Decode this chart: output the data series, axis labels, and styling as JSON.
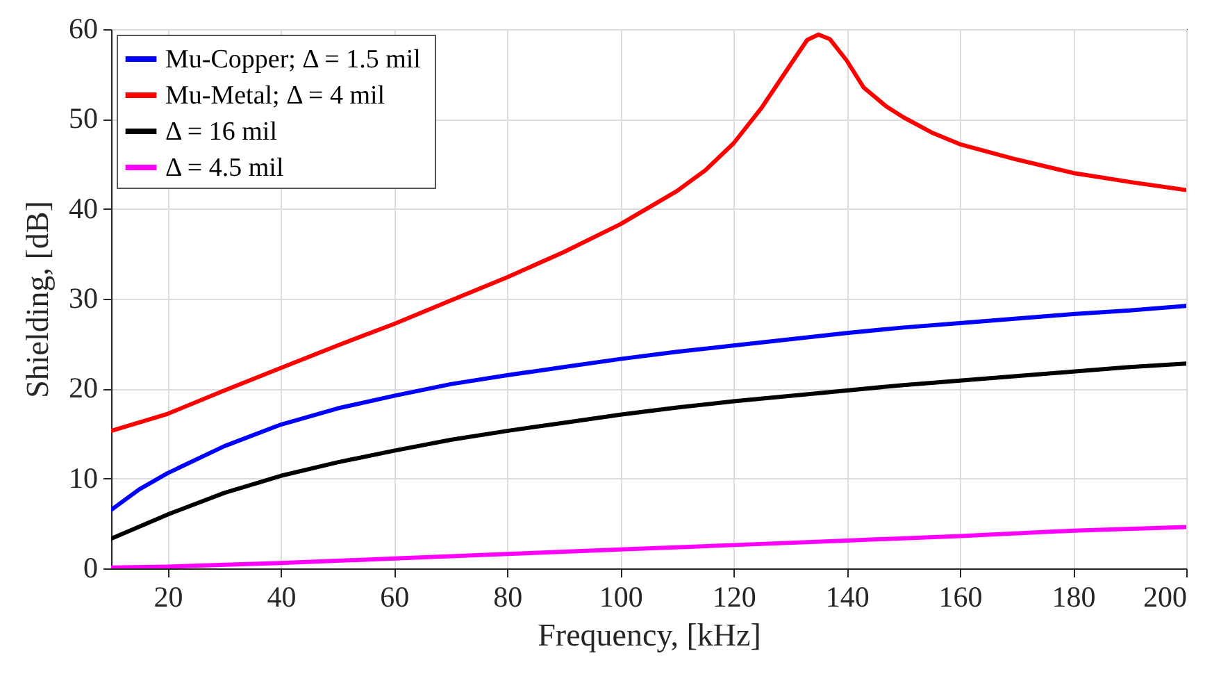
{
  "chart_data": {
    "type": "line",
    "xlabel": "Frequency, [kHz]",
    "ylabel": "Shielding, [dB]",
    "xlim": [
      10,
      200
    ],
    "ylim": [
      0,
      60
    ],
    "xticks": [
      20,
      40,
      60,
      80,
      100,
      120,
      140,
      160,
      180,
      200
    ],
    "yticks": [
      0,
      10,
      20,
      30,
      40,
      50,
      60
    ],
    "grid": true,
    "legend": "top left",
    "line_style": "solid",
    "marker": "none",
    "series": [
      {
        "name": "Mu-Copper; Δ =  1.5 mil",
        "color": "#0000ff",
        "x": [
          10,
          15,
          20,
          30,
          40,
          50,
          60,
          70,
          80,
          90,
          100,
          110,
          120,
          130,
          140,
          150,
          160,
          170,
          180,
          190,
          200
        ],
        "values": [
          6.5,
          8.8,
          10.6,
          13.6,
          16,
          17.8,
          19.2,
          20.5,
          21.5,
          22.4,
          23.3,
          24.1,
          24.8,
          25.5,
          26.2,
          26.8,
          27.3,
          27.8,
          28.3,
          28.7,
          29.2
        ]
      },
      {
        "name": "Mu-Metal; Δ =  4 mil",
        "color": "#ff0000",
        "x": [
          10,
          20,
          30,
          40,
          50,
          60,
          70,
          80,
          90,
          100,
          110,
          115,
          120,
          125,
          130,
          133,
          135,
          137,
          140,
          143,
          147,
          150,
          155,
          160,
          170,
          180,
          190,
          200
        ],
        "values": [
          15.3,
          17.2,
          19.8,
          22.3,
          24.8,
          27.2,
          29.8,
          32.4,
          35.2,
          38.3,
          42,
          44.3,
          47.3,
          51.3,
          56,
          58.8,
          59.4,
          58.9,
          56.5,
          53.5,
          51.4,
          50.2,
          48.5,
          47.2,
          45.5,
          44,
          43,
          42.1
        ]
      },
      {
        "name": "Δ =  16 mil",
        "color": "#000000",
        "x": [
          10,
          20,
          30,
          40,
          50,
          60,
          70,
          80,
          90,
          100,
          110,
          120,
          130,
          140,
          150,
          160,
          170,
          180,
          190,
          200
        ],
        "values": [
          3.3,
          6,
          8.4,
          10.3,
          11.8,
          13.1,
          14.3,
          15.3,
          16.2,
          17.1,
          17.9,
          18.6,
          19.2,
          19.8,
          20.4,
          20.9,
          21.4,
          21.9,
          22.4,
          22.8
        ]
      },
      {
        "name": "Δ =  4.5 mil",
        "color": "#ff00ff",
        "x": [
          10,
          20,
          40,
          60,
          80,
          100,
          120,
          140,
          160,
          180,
          200
        ],
        "values": [
          0.1,
          0.2,
          0.6,
          1.1,
          1.6,
          2.1,
          2.6,
          3.1,
          3.6,
          4.2,
          4.6
        ]
      }
    ]
  }
}
